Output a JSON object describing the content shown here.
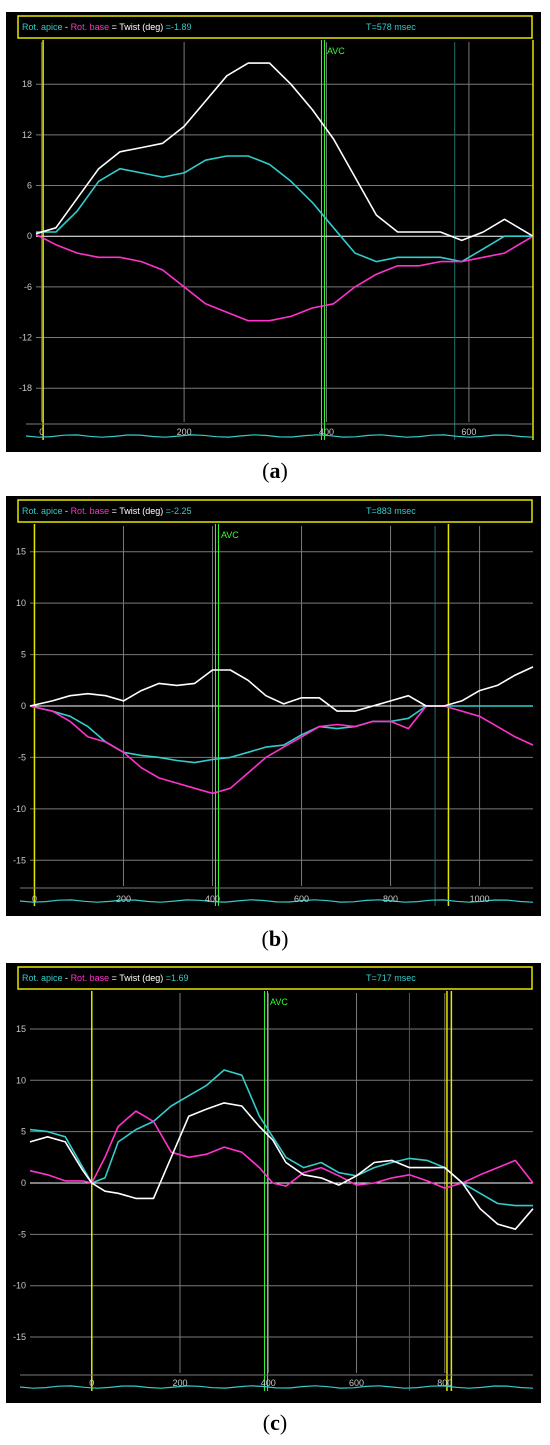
{
  "chart_data": [
    {
      "type": "line",
      "caption": "a",
      "header": {
        "apex_label": "Rot. apice",
        "minus": "-",
        "base_label": "Rot. base",
        "equals": "=",
        "twist_label": "Twist (deg)",
        "twist_value": "=-1.89",
        "time": "T=578 msec"
      },
      "marker_label": "AVC",
      "xlim": [
        -8,
        690
      ],
      "ylim": [
        -22,
        23
      ],
      "x_ticks": [
        0,
        200,
        400,
        600
      ],
      "y_ticks": [
        18,
        12,
        6,
        0,
        -6,
        -12,
        -18
      ],
      "avc_x": 395,
      "yellow_x": [
        2,
        690
      ],
      "teal_x": 580,
      "colors": {
        "apex": "#33cccc",
        "base": "#ff33cc",
        "twist": "#ffffff"
      },
      "series": [
        {
          "key": "apex",
          "x": [
            -8,
            20,
            50,
            80,
            110,
            140,
            170,
            200,
            230,
            260,
            290,
            320,
            350,
            380,
            410,
            440,
            470,
            500,
            530,
            560,
            590,
            620,
            650,
            690
          ],
          "y": [
            0.5,
            0.5,
            3,
            6.5,
            8,
            7.5,
            7,
            7.5,
            9,
            9.5,
            9.5,
            8.5,
            6.5,
            4,
            1,
            -2,
            -3,
            -2.5,
            -2.5,
            -2.5,
            -3,
            -1.5,
            0,
            0
          ]
        },
        {
          "key": "base",
          "x": [
            -8,
            20,
            50,
            80,
            110,
            140,
            170,
            200,
            230,
            260,
            290,
            320,
            350,
            380,
            410,
            440,
            470,
            500,
            530,
            560,
            590,
            620,
            650,
            690
          ],
          "y": [
            0.2,
            -1,
            -2,
            -2.5,
            -2.5,
            -3,
            -4,
            -6,
            -8,
            -9,
            -10,
            -10,
            -9.5,
            -8.5,
            -8,
            -6,
            -4.5,
            -3.5,
            -3.5,
            -3,
            -3,
            -2.5,
            -2,
            0
          ]
        },
        {
          "key": "twist",
          "x": [
            -8,
            20,
            50,
            80,
            110,
            140,
            170,
            200,
            230,
            260,
            290,
            320,
            350,
            380,
            410,
            440,
            470,
            500,
            530,
            560,
            590,
            620,
            650,
            690
          ],
          "y": [
            0.3,
            1,
            4.5,
            8,
            10,
            10.5,
            11,
            13,
            16,
            19,
            20.5,
            20.5,
            18,
            15,
            11.5,
            7,
            2.5,
            0.5,
            0.5,
            0.5,
            -0.5,
            0.5,
            2,
            0
          ]
        }
      ]
    },
    {
      "type": "line",
      "caption": "b",
      "header": {
        "apex_label": "Rot. apice",
        "minus": "-",
        "base_label": "Rot. base",
        "equals": "=",
        "twist_label": "Twist (deg)",
        "twist_value": "=-2.25",
        "time": "T=883 msec"
      },
      "marker_label": "AVC",
      "xlim": [
        -10,
        1120
      ],
      "ylim": [
        -17.5,
        17.5
      ],
      "x_ticks": [
        0,
        200,
        400,
        600,
        800,
        1000
      ],
      "y_ticks": [
        15,
        10,
        5,
        0,
        -5,
        -10,
        -15
      ],
      "avc_x": 410,
      "yellow_x": [
        0,
        930
      ],
      "teal_x": 900,
      "colors": {
        "apex": "#33cccc",
        "base": "#ff33cc",
        "twist": "#ffffff"
      },
      "series": [
        {
          "key": "apex",
          "x": [
            -10,
            40,
            80,
            120,
            160,
            200,
            240,
            280,
            320,
            360,
            400,
            440,
            480,
            520,
            560,
            600,
            640,
            680,
            720,
            760,
            800,
            840,
            880,
            920,
            960,
            1000,
            1040,
            1080,
            1120
          ],
          "y": [
            0,
            -0.5,
            -1,
            -2,
            -3.5,
            -4.5,
            -4.8,
            -5,
            -5.3,
            -5.5,
            -5.2,
            -5,
            -4.5,
            -4,
            -3.8,
            -2.8,
            -2,
            -2.2,
            -2,
            -1.5,
            -1.5,
            -1.2,
            0,
            0,
            0,
            0,
            0,
            0,
            0
          ]
        },
        {
          "key": "base",
          "x": [
            -10,
            40,
            80,
            120,
            160,
            200,
            240,
            280,
            320,
            360,
            400,
            440,
            480,
            520,
            560,
            600,
            640,
            680,
            720,
            760,
            800,
            840,
            880,
            920,
            960,
            1000,
            1040,
            1080,
            1120
          ],
          "y": [
            0,
            -0.5,
            -1.5,
            -3,
            -3.5,
            -4.5,
            -6,
            -7,
            -7.5,
            -8,
            -8.5,
            -8,
            -6.5,
            -5,
            -4,
            -3,
            -2,
            -1.8,
            -2,
            -1.5,
            -1.5,
            -2.2,
            0,
            0,
            -0.5,
            -1,
            -2,
            -3,
            -3.8
          ]
        },
        {
          "key": "twist",
          "x": [
            -10,
            40,
            80,
            120,
            160,
            200,
            240,
            280,
            320,
            360,
            400,
            440,
            480,
            520,
            560,
            600,
            640,
            680,
            720,
            760,
            800,
            840,
            880,
            920,
            960,
            1000,
            1040,
            1080,
            1120
          ],
          "y": [
            0,
            0.5,
            1,
            1.2,
            1,
            0.5,
            1.5,
            2.2,
            2,
            2.2,
            3.5,
            3.5,
            2.5,
            1,
            0.2,
            0.8,
            0.8,
            -0.5,
            -0.5,
            0,
            0.5,
            1,
            0,
            0,
            0.5,
            1.5,
            2,
            3,
            3.8
          ]
        }
      ]
    },
    {
      "type": "line",
      "caption": "c",
      "header": {
        "apex_label": "Rot. apice",
        "minus": "-",
        "base_label": "Rot. base",
        "equals": "=",
        "twist_label": "Twist (deg)",
        "twist_value": "=1.69",
        "time": "T=717 msec"
      },
      "marker_label": "AVC",
      "xlim": [
        -140,
        1000
      ],
      "ylim": [
        -18.5,
        18.5
      ],
      "x_ticks": [
        0,
        200,
        400,
        600,
        800
      ],
      "y_ticks": [
        15,
        10,
        5,
        0,
        -5,
        -10,
        -15
      ],
      "avc_x": 395,
      "yellow_x": [
        0,
        805,
        815
      ],
      "teal_x": 720,
      "colors": {
        "apex": "#33cccc",
        "base": "#ff33cc",
        "twist": "#ffffff"
      },
      "series": [
        {
          "key": "apex",
          "x": [
            -140,
            -100,
            -60,
            -20,
            0,
            30,
            60,
            100,
            140,
            180,
            220,
            260,
            300,
            340,
            380,
            410,
            440,
            480,
            520,
            560,
            600,
            640,
            680,
            720,
            760,
            800,
            840,
            880,
            920,
            960,
            1000
          ],
          "y": [
            5.2,
            5,
            4.5,
            1.5,
            0,
            0.5,
            4,
            5.2,
            6,
            7.5,
            8.5,
            9.5,
            11,
            10.5,
            6.5,
            4.5,
            2.5,
            1.5,
            2,
            1,
            0.7,
            1.5,
            2,
            2.4,
            2.2,
            1.5,
            0,
            -1,
            -2,
            -2.2,
            -2.2
          ]
        },
        {
          "key": "base",
          "x": [
            -140,
            -100,
            -60,
            -20,
            0,
            30,
            60,
            100,
            140,
            180,
            220,
            260,
            300,
            340,
            380,
            410,
            440,
            480,
            520,
            560,
            600,
            640,
            680,
            720,
            760,
            800,
            840,
            880,
            920,
            960,
            1000
          ],
          "y": [
            1.2,
            0.8,
            0.2,
            0.2,
            0,
            2.5,
            5.5,
            7,
            6,
            3,
            2.5,
            2.8,
            3.5,
            3,
            1.5,
            0,
            -0.3,
            1,
            1.5,
            0.7,
            -0.2,
            0,
            0.5,
            0.8,
            0.2,
            -0.5,
            0,
            0.8,
            1.5,
            2.2,
            0
          ]
        },
        {
          "key": "twist",
          "x": [
            -140,
            -100,
            -60,
            -20,
            0,
            30,
            60,
            100,
            140,
            180,
            220,
            260,
            300,
            340,
            380,
            410,
            440,
            480,
            520,
            560,
            600,
            640,
            680,
            720,
            760,
            800,
            840,
            880,
            920,
            960,
            1000
          ],
          "y": [
            4,
            4.5,
            4,
            1.2,
            0,
            -0.8,
            -1,
            -1.5,
            -1.5,
            2.5,
            6.5,
            7.2,
            7.8,
            7.5,
            5.5,
            4.2,
            2,
            0.8,
            0.5,
            -0.2,
            0.7,
            2,
            2.2,
            1.5,
            1.5,
            1.5,
            0,
            -2.5,
            -4,
            -4.5,
            -2.5
          ]
        }
      ]
    }
  ]
}
